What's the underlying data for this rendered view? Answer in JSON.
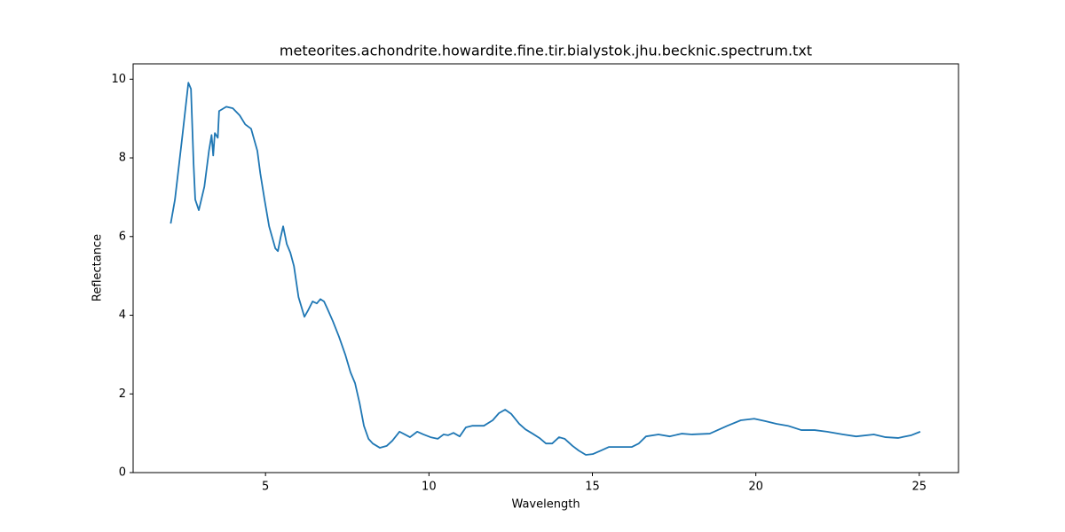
{
  "chart_data": {
    "type": "line",
    "title": "meteorites.achondrite.howardite.fine.tir.bialystok.jhu.becknic.spectrum.txt",
    "x_label": "Wavelength",
    "y_label": "Reflectance",
    "xlim": [
      0.95,
      26.2
    ],
    "ylim": [
      0,
      10.39
    ],
    "xticks": [
      5,
      10,
      15,
      20,
      25
    ],
    "yticks": [
      0,
      2,
      4,
      6,
      8,
      10
    ],
    "grid": false,
    "series": [
      {
        "name": "spectrum",
        "color": "#1f77b4",
        "x": [
          2.1,
          2.23,
          2.45,
          2.64,
          2.72,
          2.8,
          2.85,
          2.96,
          3.13,
          3.27,
          3.35,
          3.4,
          3.45,
          3.54,
          3.58,
          3.8,
          4.0,
          4.21,
          4.38,
          4.56,
          4.75,
          4.84,
          4.97,
          5.11,
          5.3,
          5.38,
          5.46,
          5.54,
          5.65,
          5.76,
          5.87,
          6.01,
          6.19,
          6.3,
          6.44,
          6.57,
          6.68,
          6.79,
          6.88,
          7.06,
          7.25,
          7.44,
          7.6,
          7.74,
          7.88,
          8.01,
          8.15,
          8.28,
          8.5,
          8.71,
          8.88,
          9.1,
          9.26,
          9.42,
          9.64,
          9.83,
          10.05,
          10.27,
          10.45,
          10.59,
          10.75,
          10.94,
          11.13,
          11.32,
          11.68,
          11.95,
          12.14,
          12.33,
          12.52,
          12.76,
          12.95,
          13.17,
          13.38,
          13.58,
          13.77,
          13.98,
          14.15,
          14.39,
          14.58,
          14.8,
          15.01,
          15.26,
          15.5,
          15.88,
          16.2,
          16.42,
          16.64,
          17.02,
          17.37,
          17.73,
          18.05,
          18.59,
          19.13,
          19.54,
          19.95,
          20.28,
          20.63,
          20.98,
          21.39,
          21.8,
          22.18,
          22.67,
          23.07,
          23.61,
          23.97,
          24.35,
          24.76,
          25.03
        ],
        "values": [
          6.33,
          6.94,
          8.51,
          9.91,
          9.75,
          7.84,
          6.94,
          6.67,
          7.27,
          8.18,
          8.58,
          8.06,
          8.63,
          8.51,
          9.19,
          9.3,
          9.26,
          9.08,
          8.85,
          8.74,
          8.18,
          7.61,
          6.94,
          6.26,
          5.7,
          5.63,
          5.97,
          6.26,
          5.81,
          5.59,
          5.25,
          4.46,
          3.96,
          4.12,
          4.35,
          4.3,
          4.41,
          4.35,
          4.19,
          3.85,
          3.45,
          3.0,
          2.55,
          2.27,
          1.76,
          1.19,
          0.86,
          0.74,
          0.63,
          0.68,
          0.81,
          1.04,
          0.97,
          0.9,
          1.04,
          0.97,
          0.9,
          0.86,
          0.97,
          0.95,
          1.01,
          0.92,
          1.15,
          1.19,
          1.19,
          1.33,
          1.51,
          1.6,
          1.49,
          1.24,
          1.1,
          0.99,
          0.88,
          0.74,
          0.74,
          0.9,
          0.86,
          0.68,
          0.56,
          0.45,
          0.47,
          0.56,
          0.65,
          0.65,
          0.65,
          0.74,
          0.92,
          0.97,
          0.92,
          0.99,
          0.97,
          0.99,
          1.19,
          1.33,
          1.37,
          1.31,
          1.24,
          1.19,
          1.08,
          1.08,
          1.04,
          0.97,
          0.92,
          0.97,
          0.9,
          0.88,
          0.95,
          1.04
        ]
      }
    ]
  }
}
